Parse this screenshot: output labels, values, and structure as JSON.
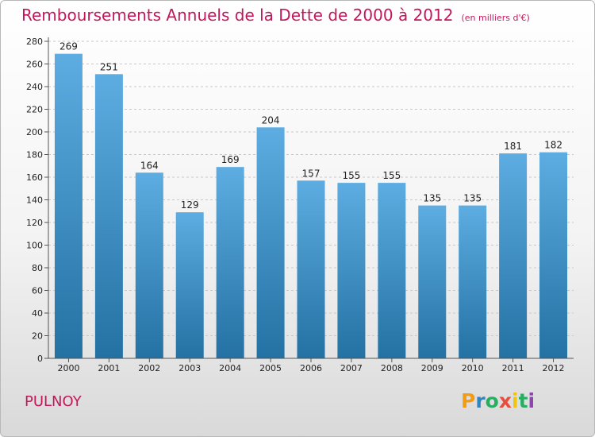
{
  "title": "Remboursements Annuels de la Dette de 2000 à 2012",
  "subtitle": "(en milliers d'€)",
  "commune": "PULNOY",
  "logo": {
    "text": "Proxiti",
    "letters": [
      "P",
      "r",
      "o",
      "x",
      "i",
      "t",
      "i"
    ],
    "colors": [
      "#f39c12",
      "#2e86c1",
      "#27ae60",
      "#e74c3c",
      "#f1c40f",
      "#27ae60",
      "#8e44ad"
    ]
  },
  "colors": {
    "accent": "#c2185b",
    "bar_top": "#5dade2",
    "bar_bottom": "#2471a3"
  },
  "chart_data": {
    "type": "bar",
    "title": "Remboursements Annuels de la Dette de 2000 à 2012",
    "categories": [
      "2000",
      "2001",
      "2002",
      "2003",
      "2004",
      "2005",
      "2006",
      "2007",
      "2008",
      "2009",
      "2010",
      "2011",
      "2012"
    ],
    "values": [
      269,
      251,
      164,
      129,
      169,
      204,
      157,
      155,
      155,
      135,
      135,
      181,
      182
    ],
    "ylim": [
      0,
      280
    ],
    "yticks": [
      0,
      20,
      40,
      60,
      80,
      100,
      120,
      140,
      160,
      180,
      200,
      220,
      240,
      260,
      280
    ],
    "grid": true
  }
}
